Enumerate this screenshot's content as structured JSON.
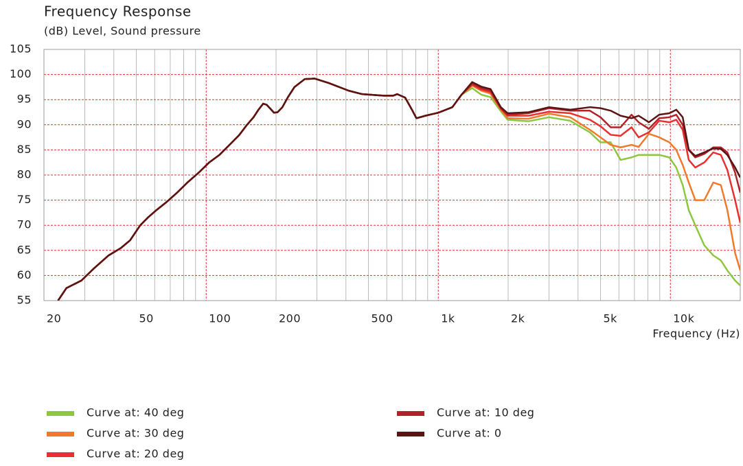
{
  "chart_data": {
    "type": "line",
    "title": "Frequency Response",
    "subtitle": "(dB)  Level, Sound pressure",
    "xlabel": "Frequency  (Hz)",
    "xscale": "log",
    "xlim": [
      20,
      20000
    ],
    "ylim": [
      55,
      105
    ],
    "xticks": [
      20,
      50,
      100,
      200,
      500,
      {
        "value": 1000,
        "label": "1k"
      },
      {
        "value": 2000,
        "label": "2k"
      },
      {
        "value": 5000,
        "label": "5k"
      },
      {
        "value": 10000,
        "label": "10k"
      }
    ],
    "yticks": [
      55,
      60,
      65,
      70,
      75,
      80,
      85,
      90,
      95,
      100,
      105
    ],
    "xgrid": [
      30,
      40,
      50,
      60,
      70,
      80,
      90,
      200,
      300,
      400,
      500,
      600,
      700,
      800,
      900,
      2000,
      3000,
      4000,
      5000,
      6000,
      7000,
      8000,
      9000
    ],
    "xgrid_major": [
      100,
      1000,
      10000
    ],
    "grid": true,
    "x": [
      23,
      25,
      29,
      33,
      38,
      43,
      47,
      52,
      56,
      61,
      67,
      75,
      83,
      93,
      103,
      114,
      126,
      139,
      150,
      160,
      168,
      176,
      182,
      189,
      196,
      203,
      213,
      225,
      240,
      266,
      293,
      338,
      410,
      470,
      580,
      640,
      665,
      720,
      770,
      805,
      880,
      1000,
      1150,
      1260,
      1400,
      1530,
      1680,
      1860,
      1990,
      2450,
      3000,
      3700,
      4500,
      5000,
      5530,
      6100,
      6800,
      7300,
      8080,
      8950,
      9900,
      10600,
      11300,
      12000,
      12800,
      14000,
      15300,
      16500,
      17600,
      19000,
      20000
    ],
    "series": [
      {
        "name": "Curve at: 40 deg",
        "color": "#8dc63f",
        "values": [
          55,
          57.5,
          59,
          61.5,
          64,
          65.5,
          67,
          70,
          71.5,
          73,
          74.5,
          76.5,
          78.5,
          80.5,
          82.5,
          84,
          86,
          88,
          90,
          91.5,
          93,
          94.2,
          94,
          93.2,
          92.4,
          92.5,
          93.5,
          95.5,
          97.5,
          99.1,
          99.2,
          98.3,
          96.8,
          96.1,
          95.8,
          95.8,
          96.1,
          95.4,
          93,
          91.3,
          91.8,
          92.4,
          93.5,
          96,
          97.3,
          96,
          95.5,
          92.7,
          91,
          90.7,
          91.5,
          90.8,
          88.5,
          86.5,
          86.5,
          83,
          83.5,
          84,
          84,
          84,
          83.5,
          81.5,
          78,
          73,
          70,
          66,
          64,
          63,
          61,
          59,
          58
        ]
      },
      {
        "name": "Curve at: 30 deg",
        "color": "#f07a2a",
        "values": [
          55,
          57.5,
          59,
          61.5,
          64,
          65.5,
          67,
          70,
          71.5,
          73,
          74.5,
          76.5,
          78.5,
          80.5,
          82.5,
          84,
          86,
          88,
          90,
          91.5,
          93,
          94.2,
          94,
          93.2,
          92.4,
          92.5,
          93.5,
          95.5,
          97.5,
          99.1,
          99.2,
          98.3,
          96.8,
          96.1,
          95.8,
          95.8,
          96.1,
          95.4,
          93,
          91.3,
          91.8,
          92.4,
          93.5,
          96,
          97.8,
          96.8,
          96.2,
          93,
          91.3,
          91.2,
          92.2,
          91.5,
          89,
          87.5,
          86,
          85.5,
          86,
          85.6,
          88.2,
          87.5,
          86.5,
          85,
          82,
          78.5,
          75,
          75,
          78.5,
          78,
          73,
          64.5,
          61
        ]
      },
      {
        "name": "Curve at: 20 deg",
        "color": "#e8302e",
        "values": [
          55,
          57.5,
          59,
          61.5,
          64,
          65.5,
          67,
          70,
          71.5,
          73,
          74.5,
          76.5,
          78.5,
          80.5,
          82.5,
          84,
          86,
          88,
          90,
          91.5,
          93,
          94.2,
          94,
          93.2,
          92.4,
          92.5,
          93.5,
          95.5,
          97.5,
          99.1,
          99.2,
          98.3,
          96.8,
          96.1,
          95.8,
          95.8,
          96.1,
          95.4,
          93,
          91.3,
          91.8,
          92.4,
          93.5,
          96,
          98,
          97,
          96.5,
          93.2,
          91.8,
          91.8,
          92.6,
          92.3,
          91,
          89.7,
          88,
          87.8,
          89.5,
          87.5,
          88.5,
          90.8,
          90.5,
          91,
          89,
          83,
          81.5,
          82.5,
          84.5,
          84,
          81,
          75,
          70.5
        ]
      },
      {
        "name": "Curve at: 10 deg",
        "color": "#b2222a",
        "values": [
          55,
          57.5,
          59,
          61.5,
          64,
          65.5,
          67,
          70,
          71.5,
          73,
          74.5,
          76.5,
          78.5,
          80.5,
          82.5,
          84,
          86,
          88,
          90,
          91.5,
          93,
          94.2,
          94,
          93.2,
          92.4,
          92.5,
          93.5,
          95.5,
          97.5,
          99.1,
          99.2,
          98.3,
          96.8,
          96.1,
          95.8,
          95.8,
          96.1,
          95.4,
          93,
          91.3,
          91.8,
          92.4,
          93.5,
          96,
          98.2,
          97.3,
          96.8,
          93.3,
          92,
          92.3,
          93.3,
          92.8,
          92.8,
          91.5,
          89.5,
          89.5,
          92,
          90.5,
          89.2,
          91.3,
          91.5,
          92,
          90,
          85,
          83.5,
          84.2,
          85.5,
          85.5,
          84.5,
          80.5,
          76.5
        ]
      },
      {
        "name": "Curve at: 0",
        "color": "#5a1414",
        "values": [
          55,
          57.5,
          59,
          61.5,
          64,
          65.5,
          67,
          70,
          71.5,
          73,
          74.5,
          76.5,
          78.5,
          80.5,
          82.5,
          84,
          86,
          88,
          90,
          91.5,
          93,
          94.2,
          94,
          93.2,
          92.4,
          92.5,
          93.5,
          95.5,
          97.5,
          99.1,
          99.2,
          98.3,
          96.8,
          96.1,
          95.8,
          95.8,
          96.1,
          95.4,
          93,
          91.3,
          91.8,
          92.4,
          93.5,
          96,
          98.5,
          97.6,
          97.1,
          93.5,
          92.3,
          92.5,
          93.5,
          93,
          93.5,
          93.3,
          92.8,
          91.8,
          91.3,
          91.8,
          90.5,
          92,
          92.3,
          93,
          91.5,
          85,
          83.8,
          84.5,
          85.3,
          85.2,
          84,
          81.5,
          79.5
        ]
      }
    ]
  }
}
